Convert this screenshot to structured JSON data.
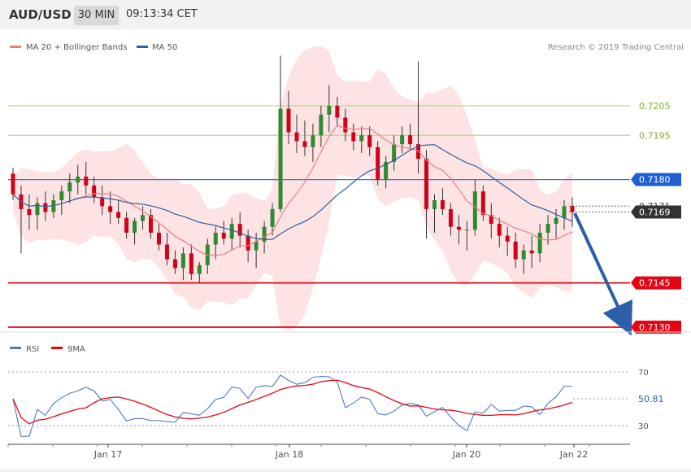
{
  "header": {
    "pair": "AUD/USD",
    "timeframe": "30 MIN",
    "time": "09:13:34 CET"
  },
  "legend": {
    "ma20": "MA 20 + Bollinger Bands",
    "ma50": "MA 50",
    "copyright": "Research © 2019 Trading Central"
  },
  "price_levels": [
    {
      "label": "0.7205",
      "value": 0.7205,
      "color": "#7ab22a",
      "kind": "resistance"
    },
    {
      "label": "0.7195",
      "value": 0.7195,
      "color": "#7ab22a",
      "kind": "resistance"
    },
    {
      "label": "0.7180",
      "value": 0.718,
      "color": "#1f5fd6",
      "kind": "pivot"
    },
    {
      "label": "0.7171",
      "value": 0.7171,
      "color": "#333333",
      "kind": "level"
    },
    {
      "label": "0.7169",
      "value": 0.7169,
      "color": "#333333",
      "kind": "last"
    },
    {
      "label": "0.7145",
      "value": 0.7145,
      "color": "#e30613",
      "kind": "support"
    },
    {
      "label": "0.7130",
      "value": 0.713,
      "color": "#e30613",
      "kind": "support"
    }
  ],
  "rsi": {
    "legend_rsi": "RSI",
    "legend_ma": "9MA",
    "tick_70": "70",
    "tick_30": "30",
    "last": "50.81"
  },
  "x_labels": [
    "Jan 17",
    "Jan 18",
    "Jan 20",
    "Jan 22"
  ],
  "colors": {
    "up": "#2e8b2e",
    "down": "#d0021b",
    "band": "#fde3e3",
    "ma20": "#e88080",
    "ma50": "#2b5fa8",
    "arrow": "#2b5fa8"
  },
  "chart_data": {
    "type": "candlestick",
    "title": "AUD/USD 30 MIN",
    "ylim": [
      0.7126,
      0.724
    ],
    "rsi_ylim": [
      20,
      80
    ],
    "x_categories": [
      "Jan 17",
      "Jan 18",
      "Jan 20",
      "Jan 22"
    ],
    "candles": [
      [
        0.7182,
        0.7184,
        0.7173,
        0.7175
      ],
      [
        0.7175,
        0.7178,
        0.7155,
        0.717
      ],
      [
        0.717,
        0.7175,
        0.7163,
        0.7168
      ],
      [
        0.7168,
        0.7174,
        0.7163,
        0.7172
      ],
      [
        0.7172,
        0.7176,
        0.7166,
        0.7169
      ],
      [
        0.7169,
        0.7175,
        0.7167,
        0.7173
      ],
      [
        0.7173,
        0.7178,
        0.7168,
        0.7176
      ],
      [
        0.7176,
        0.7182,
        0.7172,
        0.7179
      ],
      [
        0.7179,
        0.7185,
        0.7175,
        0.7181
      ],
      [
        0.7181,
        0.7186,
        0.7175,
        0.7178
      ],
      [
        0.7178,
        0.7181,
        0.7172,
        0.7174
      ],
      [
        0.7174,
        0.7178,
        0.7168,
        0.7171
      ],
      [
        0.7171,
        0.7176,
        0.7165,
        0.7169
      ],
      [
        0.7169,
        0.7173,
        0.7165,
        0.7167
      ],
      [
        0.7167,
        0.7169,
        0.716,
        0.7162
      ],
      [
        0.7162,
        0.7167,
        0.7158,
        0.7166
      ],
      [
        0.7166,
        0.7171,
        0.7163,
        0.7168
      ],
      [
        0.7168,
        0.717,
        0.716,
        0.7162
      ],
      [
        0.7162,
        0.7165,
        0.7156,
        0.7158
      ],
      [
        0.7158,
        0.7162,
        0.7151,
        0.7153
      ],
      [
        0.7153,
        0.7156,
        0.7148,
        0.715
      ],
      [
        0.715,
        0.7157,
        0.7146,
        0.7155
      ],
      [
        0.7155,
        0.7158,
        0.7146,
        0.7148
      ],
      [
        0.7148,
        0.7152,
        0.7145,
        0.7151
      ],
      [
        0.7151,
        0.716,
        0.7148,
        0.7158
      ],
      [
        0.7158,
        0.7164,
        0.7153,
        0.7162
      ],
      [
        0.7162,
        0.7166,
        0.7158,
        0.716
      ],
      [
        0.716,
        0.7167,
        0.7156,
        0.7165
      ],
      [
        0.7165,
        0.7169,
        0.7157,
        0.7161
      ],
      [
        0.7161,
        0.7163,
        0.7152,
        0.7156
      ],
      [
        0.7156,
        0.7162,
        0.715,
        0.7159
      ],
      [
        0.7159,
        0.7166,
        0.7155,
        0.7164
      ],
      [
        0.7164,
        0.7172,
        0.7161,
        0.717
      ],
      [
        0.717,
        0.7222,
        0.7169,
        0.7204
      ],
      [
        0.7204,
        0.721,
        0.7192,
        0.7196
      ],
      [
        0.7196,
        0.7202,
        0.7189,
        0.7193
      ],
      [
        0.7193,
        0.72,
        0.7188,
        0.7191
      ],
      [
        0.7191,
        0.7199,
        0.7186,
        0.7195
      ],
      [
        0.7195,
        0.7205,
        0.7191,
        0.7202
      ],
      [
        0.7202,
        0.7212,
        0.7196,
        0.7205
      ],
      [
        0.7205,
        0.7208,
        0.7198,
        0.7201
      ],
      [
        0.7201,
        0.7204,
        0.7193,
        0.7196
      ],
      [
        0.7196,
        0.7199,
        0.719,
        0.7193
      ],
      [
        0.7193,
        0.7198,
        0.7189,
        0.7195
      ],
      [
        0.7195,
        0.7198,
        0.7188,
        0.7191
      ],
      [
        0.7191,
        0.7193,
        0.7178,
        0.718
      ],
      [
        0.718,
        0.7188,
        0.7177,
        0.7186
      ],
      [
        0.7186,
        0.7195,
        0.7183,
        0.7192
      ],
      [
        0.7192,
        0.7198,
        0.7189,
        0.7195
      ],
      [
        0.7195,
        0.7199,
        0.719,
        0.7192
      ],
      [
        0.7192,
        0.722,
        0.7182,
        0.7187
      ],
      [
        0.7187,
        0.719,
        0.716,
        0.717
      ],
      [
        0.717,
        0.7175,
        0.7162,
        0.7173
      ],
      [
        0.7173,
        0.7177,
        0.7168,
        0.717
      ],
      [
        0.717,
        0.7172,
        0.7161,
        0.7164
      ],
      [
        0.7164,
        0.7168,
        0.7158,
        0.7163
      ],
      [
        0.7163,
        0.7166,
        0.7156,
        0.7163
      ],
      [
        0.7163,
        0.718,
        0.7161,
        0.7176
      ],
      [
        0.7176,
        0.7178,
        0.7166,
        0.7168
      ],
      [
        0.7168,
        0.7172,
        0.716,
        0.7165
      ],
      [
        0.7165,
        0.7167,
        0.7157,
        0.7161
      ],
      [
        0.7161,
        0.7164,
        0.7154,
        0.7159
      ],
      [
        0.7159,
        0.7162,
        0.715,
        0.7153
      ],
      [
        0.7153,
        0.7158,
        0.7148,
        0.7156
      ],
      [
        0.7156,
        0.7161,
        0.715,
        0.7155
      ],
      [
        0.7155,
        0.7165,
        0.7152,
        0.7162
      ],
      [
        0.7162,
        0.7168,
        0.7158,
        0.7165
      ],
      [
        0.7165,
        0.717,
        0.716,
        0.7167
      ],
      [
        0.7167,
        0.7173,
        0.7163,
        0.7171
      ],
      [
        0.7171,
        0.7174,
        0.7164,
        0.7169
      ]
    ],
    "annotations": [
      "0.7205",
      "0.7195",
      "0.7180",
      "0.7171",
      "0.7169",
      "0.7145",
      "0.7130"
    ]
  }
}
